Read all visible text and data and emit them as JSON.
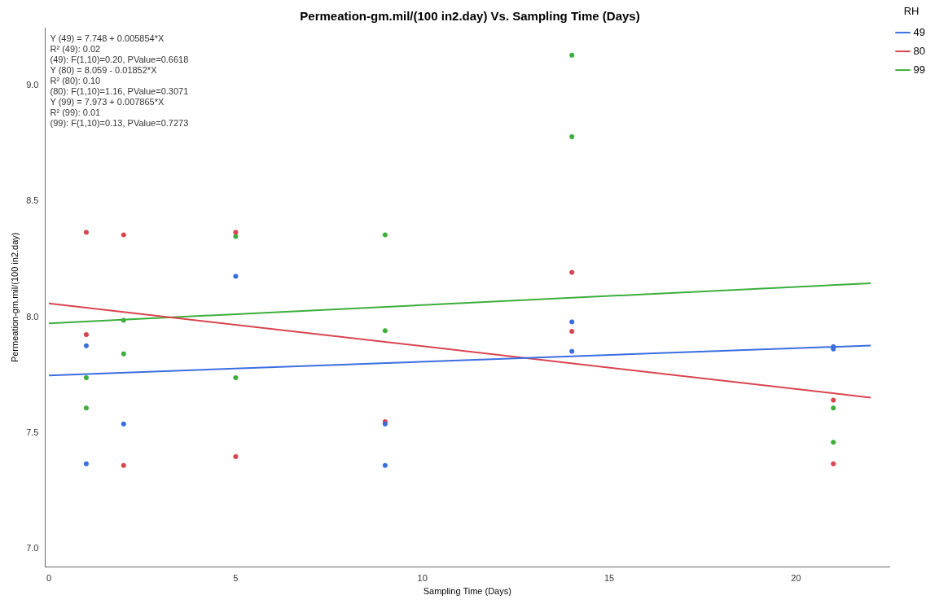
{
  "chart_data": {
    "type": "scatter",
    "title": "Permeation-gm.mil/(100 in2.day) Vs. Sampling Time (Days)",
    "xlabel": "Sampling Time (Days)",
    "ylabel": "Permeation-gm.mil/(100 in2.day)",
    "legend_title": "RH",
    "legend": "top right",
    "grid": false,
    "marker": "circle",
    "xlim": [
      -0.1,
      22.5
    ],
    "xticks": [
      0,
      5,
      10,
      15,
      20
    ],
    "ylim": [
      6.92,
      9.25
    ],
    "yticks": [
      {
        "value": 7,
        "label": "7.0"
      },
      {
        "value": 7.5,
        "label": "7.5"
      },
      {
        "value": 8,
        "label": "8.0"
      },
      {
        "value": 8.5,
        "label": "8.5"
      },
      {
        "value": 9,
        "label": "9.0"
      }
    ],
    "annotations": [
      "Y (49) = 7.748 + 0.005854*X",
      "R² (49): 0.02",
      "(49): F(1,10)=0.20, PValue=0.6618",
      "Y (80) = 8.059 - 0.01852*X",
      "R² (80): 0.10",
      "(80): F(1,10)=1.16, PValue=0.3071",
      "Y (99) = 7.973 + 0.007865*X",
      "R² (99): 0.01",
      "(99): F(1,10)=0.13, PValue=0.7273"
    ],
    "series": [
      {
        "color": "#3a6ee0",
        "x": [
          1,
          1,
          2,
          5,
          9,
          9,
          14,
          14,
          21,
          21
        ],
        "values": [
          7.876,
          7.366,
          7.538,
          8.176,
          7.538,
          7.359,
          7.979,
          7.852,
          7.872,
          7.862
        ]
      },
      {
        "color": "#d9444f",
        "x": [
          1,
          1,
          2,
          2,
          5,
          5,
          9,
          14,
          14,
          21,
          21
        ],
        "values": [
          8.366,
          7.924,
          8.355,
          7.359,
          8.366,
          7.397,
          7.548,
          8.193,
          7.938,
          7.641,
          7.366
        ]
      },
      {
        "color": "#3cae3c",
        "x": [
          1,
          1,
          2,
          2,
          5,
          5,
          9,
          9,
          14,
          14,
          21,
          21
        ],
        "values": [
          7.738,
          7.607,
          7.986,
          7.841,
          8.348,
          7.738,
          8.355,
          7.941,
          9.131,
          8.779,
          7.607,
          7.459
        ]
      },
      {
        "type": "line",
        "name": "49",
        "marker": "none",
        "color": "#3a6ee0",
        "x": [
          0,
          22
        ],
        "values": [
          7.748,
          7.877
        ]
      },
      {
        "type": "line",
        "name": "80",
        "marker": "none",
        "color": "#d9444f",
        "x": [
          0,
          22
        ],
        "values": [
          8.059,
          7.652
        ]
      },
      {
        "type": "line",
        "name": "99",
        "marker": "none",
        "color": "#3cae3c",
        "x": [
          0,
          22
        ],
        "values": [
          7.973,
          8.146
        ]
      }
    ]
  }
}
